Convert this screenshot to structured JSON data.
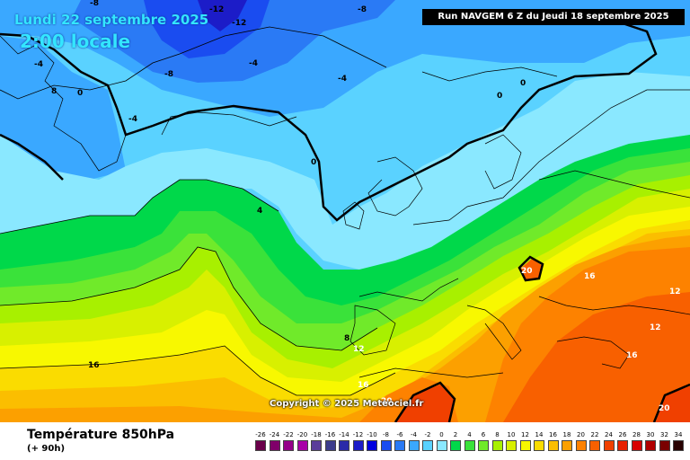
{
  "header": {
    "date": "Lundi 22 septembre 2025",
    "time": "2:00 locale",
    "run": "Run NAVGEM 6 Z du Jeudi 18 septembre 2025"
  },
  "copyright": "Copyright © 2025 Meteociel.fr",
  "footer": {
    "variable": "Température 850hPa",
    "lead_time": "(+ 90h)"
  },
  "legend": {
    "values": [
      "-26",
      "-24",
      "-22",
      "-20",
      "-18",
      "-16",
      "-14",
      "-12",
      "-10",
      "-8",
      "-6",
      "-4",
      "-2",
      "0",
      "2",
      "4",
      "6",
      "8",
      "10",
      "12",
      "14",
      "16",
      "18",
      "20",
      "22",
      "24",
      "26",
      "28",
      "30",
      "32",
      "34"
    ],
    "colors": [
      "#6a004a",
      "#80006a",
      "#950089",
      "#a800a8",
      "#5a3c9a",
      "#3c3c8c",
      "#2a2aa8",
      "#1c1cc8",
      "#0000e0",
      "#1a4cf0",
      "#2a7af5",
      "#3aa8ff",
      "#5ad2ff",
      "#8ae8ff",
      "#00d84a",
      "#3ae23a",
      "#70ea2a",
      "#a8f000",
      "#d8f000",
      "#f8f800",
      "#fadc00",
      "#fbbe00",
      "#fca000",
      "#fd8200",
      "#f86000",
      "#f04000",
      "#e82000",
      "#d80000",
      "#b00000",
      "#7a0000",
      "#280000"
    ]
  },
  "contour_labels": [
    {
      "text": "-12",
      "color": "black"
    },
    {
      "text": "-12",
      "color": "black"
    },
    {
      "text": "-8",
      "color": "black"
    },
    {
      "text": "-8",
      "color": "black"
    },
    {
      "text": "-8",
      "color": "black"
    },
    {
      "text": "-4",
      "color": "black"
    },
    {
      "text": "-4",
      "color": "black"
    },
    {
      "text": "-4",
      "color": "black"
    },
    {
      "text": "-4",
      "color": "black"
    },
    {
      "text": "0",
      "color": "black"
    },
    {
      "text": "0",
      "color": "black"
    },
    {
      "text": "0",
      "color": "black"
    },
    {
      "text": "0",
      "color": "black"
    },
    {
      "text": "4",
      "color": "black"
    },
    {
      "text": "8",
      "color": "black"
    },
    {
      "text": "8",
      "color": "black"
    },
    {
      "text": "12",
      "color": "white"
    },
    {
      "text": "12",
      "color": "white"
    },
    {
      "text": "12",
      "color": "white"
    },
    {
      "text": "16",
      "color": "black"
    },
    {
      "text": "16",
      "color": "white"
    },
    {
      "text": "16",
      "color": "white"
    },
    {
      "text": "16",
      "color": "white"
    },
    {
      "text": "20",
      "color": "white"
    },
    {
      "text": "20",
      "color": "white"
    },
    {
      "text": "20",
      "color": "white"
    }
  ]
}
